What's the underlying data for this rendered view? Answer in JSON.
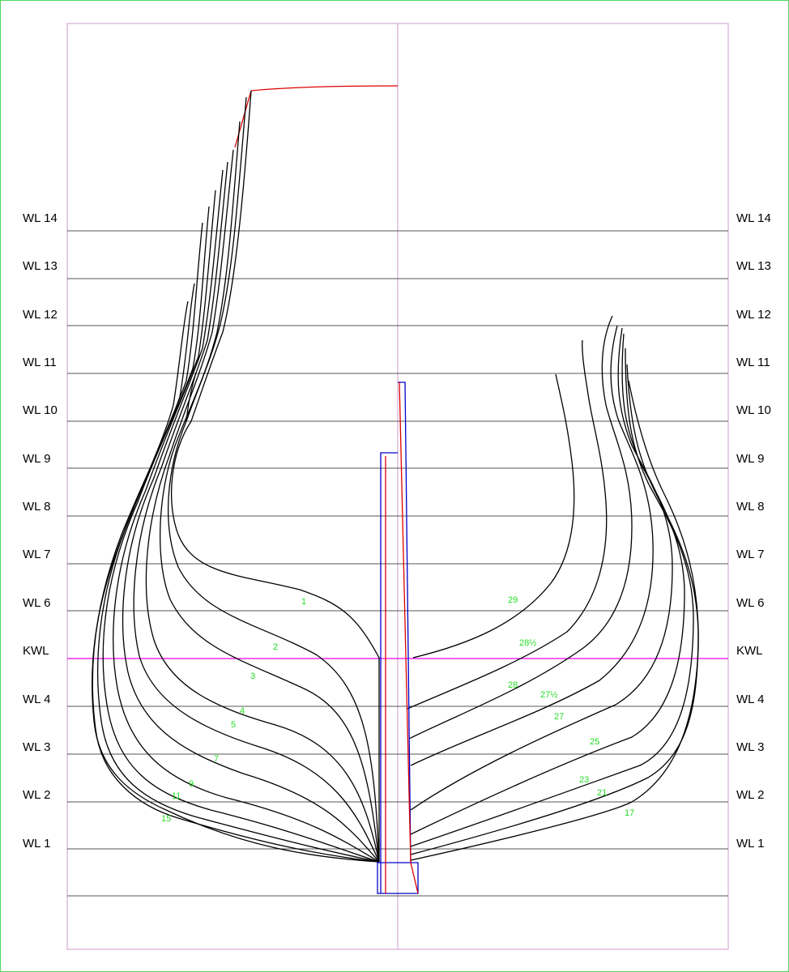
{
  "waterlines": [
    {
      "label": "WL 14"
    },
    {
      "label": "WL 13"
    },
    {
      "label": "WL 12"
    },
    {
      "label": "WL 11"
    },
    {
      "label": "WL 10"
    },
    {
      "label": "WL 9"
    },
    {
      "label": "WL 8"
    },
    {
      "label": "WL 7"
    },
    {
      "label": "WL 6"
    },
    {
      "label": "KWL"
    },
    {
      "label": "WL 4"
    },
    {
      "label": "WL 3"
    },
    {
      "label": "WL 2"
    },
    {
      "label": "WL 1"
    }
  ],
  "stations_left": [
    "1",
    "2",
    "3",
    "4",
    "5",
    "7",
    "9",
    "11",
    "15"
  ],
  "stations_right": [
    "29",
    "28½",
    "28",
    "27½",
    "27",
    "25",
    "23",
    "21",
    "17"
  ],
  "colors": {
    "frame": "#cc99cc",
    "waterline": "#555555",
    "kwl": "#ee00ee",
    "section": "#000000",
    "sheer": "#dd0000",
    "keel": "#0000cc",
    "station_label": "#22dd22"
  }
}
